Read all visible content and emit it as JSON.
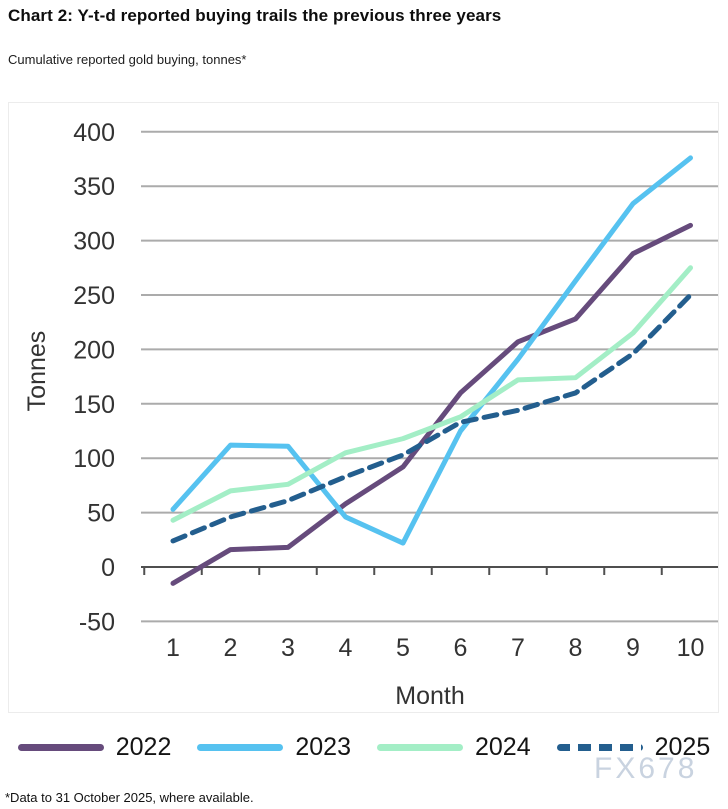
{
  "header": {
    "title": "Chart 2: Y-t-d reported buying trails the previous three years",
    "subtitle": "Cumulative reported gold buying, tonnes*"
  },
  "chart_data": {
    "type": "line",
    "title": "Chart 2: Y-t-d reported buying trails the previous three years",
    "subtitle": "Cumulative reported gold buying, tonnes*",
    "x": [
      1,
      2,
      3,
      4,
      5,
      6,
      7,
      8,
      9,
      10
    ],
    "xlabel": "Month",
    "ylabel": "Tonnes",
    "ylim": [
      -50,
      400
    ],
    "y_ticks": [
      400,
      350,
      300,
      250,
      200,
      150,
      100,
      50,
      0,
      -50
    ],
    "grid": true,
    "legend_position": "bottom",
    "series": [
      {
        "name": "2022",
        "color": "#664b7c",
        "style": "solid",
        "values": [
          -15,
          16,
          18,
          58,
          92,
          160,
          207,
          228,
          288,
          314
        ]
      },
      {
        "name": "2023",
        "color": "#56c2f0",
        "style": "solid",
        "values": [
          53,
          112,
          111,
          46,
          22,
          125,
          191,
          263,
          334,
          376
        ]
      },
      {
        "name": "2024",
        "color": "#a3eec6",
        "style": "solid",
        "values": [
          43,
          70,
          76,
          105,
          118,
          138,
          172,
          174,
          215,
          275
        ]
      },
      {
        "name": "2025",
        "color": "#235e8e",
        "style": "dashed",
        "values": [
          24,
          46,
          61,
          83,
          103,
          133,
          144,
          160,
          196,
          250
        ]
      }
    ],
    "colors": {
      "gridline": "#ababab",
      "axis": "#4f4f4f",
      "tick_label": "#333333"
    }
  },
  "watermark": "FX678",
  "footnote": "*Data to 31 October 2025, where available."
}
